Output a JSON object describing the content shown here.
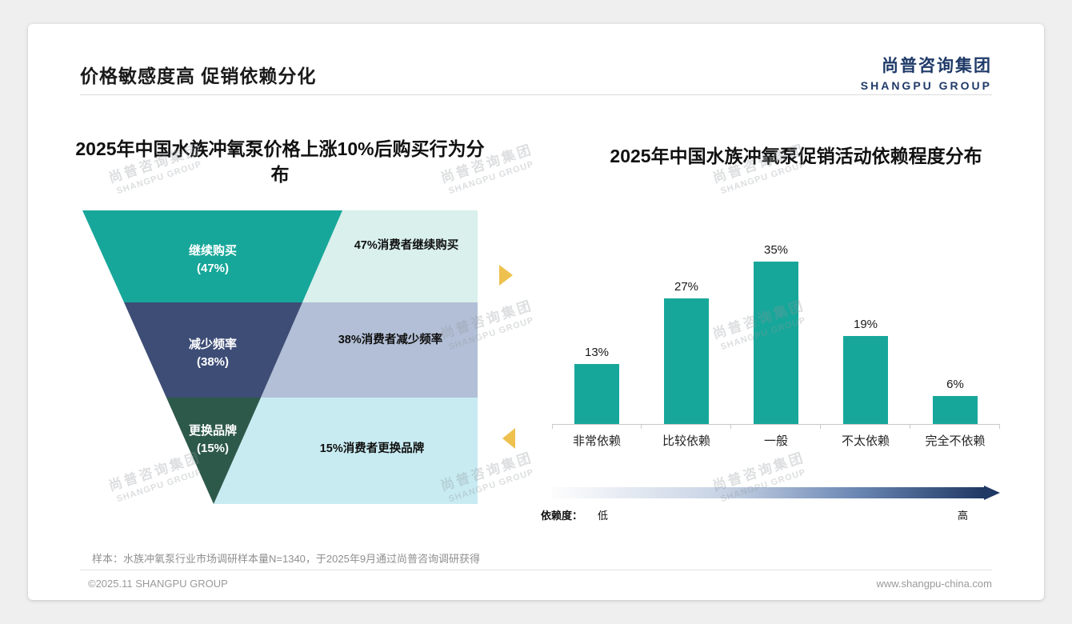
{
  "header": {
    "title": "价格敏感度高 促销依赖分化"
  },
  "logo": {
    "cn": "尚普咨询集团",
    "en": "SHANGPU GROUP"
  },
  "watermark": {
    "line1": "尚普咨询集团",
    "line2": "SHANGPU GROUP"
  },
  "left_chart": {
    "title_line1": "2025年中国水族冲氧泵价格上涨10%后购买行为分",
    "title_line2": "布"
  },
  "right_chart": {
    "title": "2025年中国水族冲氧泵促销活动依赖程度分布"
  },
  "dependence_scale": {
    "label": "依赖度：",
    "low": "低",
    "high": "高"
  },
  "footnote": "样本：水族冲氧泵行业市场调研样本量N=1340，于2025年9月通过尚普咨询调研获得",
  "footer": {
    "left": "©2025.11 SHANGPU GROUP",
    "right": "www.shangpu-china.com"
  },
  "colors": {
    "teal": "#17a79a",
    "navy": "#3d4d76",
    "dark_green": "#2d594b",
    "gold": "#eec14f",
    "brand_navy": "#1f3a68"
  },
  "chart_data": [
    {
      "type": "funnel",
      "title": "2025年中国水族冲氧泵价格上涨10%后购买行为分布",
      "levels": [
        {
          "label": "继续购买",
          "value": 47,
          "pct_text": "(47%)",
          "annotation": "47%消费者继续购买",
          "color": "#17a79a",
          "band_color": "#d9f0ec"
        },
        {
          "label": "减少频率",
          "value": 38,
          "pct_text": "(38%)",
          "annotation": "38%消费者减少频率",
          "color": "#3d4d76",
          "band_color": "#b2bfd6"
        },
        {
          "label": "更换品牌",
          "value": 15,
          "pct_text": "(15%)",
          "annotation": "15%消费者更换品牌",
          "color": "#2d594b",
          "band_color": "#c8ebf2"
        }
      ]
    },
    {
      "type": "bar",
      "title": "2025年中国水族冲氧泵促销活动依赖程度分布",
      "categories": [
        "非常依赖",
        "比较依赖",
        "一般",
        "不太依赖",
        "完全不依赖"
      ],
      "values": [
        13,
        27,
        35,
        19,
        6
      ],
      "value_labels": [
        "13%",
        "27%",
        "35%",
        "19%",
        "6%"
      ],
      "bar_color": "#17a79a",
      "ylim": [
        0,
        40
      ],
      "xlabel": "",
      "ylabel": "",
      "grid": false,
      "legend": false
    }
  ]
}
